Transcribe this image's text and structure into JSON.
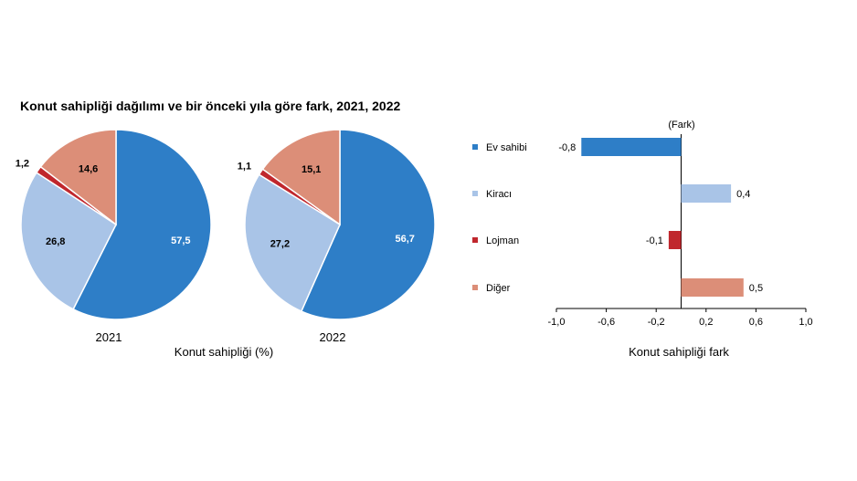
{
  "title": "Konut sahipliği dağılımı ve bir önceki yıla göre fark, 2021, 2022",
  "pie_axis_label": "Konut sahipliği (%)",
  "bar_axis_label": "Konut sahipliği fark",
  "bar_unit_label": "(Fark)",
  "colors": {
    "ev_sahibi": "#2E7EC7",
    "kiraci": "#A9C4E7",
    "lojman": "#C0272D",
    "diger": "#DC8E78"
  },
  "chart_data": [
    {
      "type": "pie",
      "title": "2021",
      "categories": [
        "Ev sahibi",
        "Kiracı",
        "Lojman",
        "Diğer"
      ],
      "values": [
        57.5,
        26.8,
        1.2,
        14.6
      ],
      "labels": [
        "57,5",
        "26,8",
        "1,2",
        "14,6"
      ]
    },
    {
      "type": "pie",
      "title": "2022",
      "categories": [
        "Ev sahibi",
        "Kiracı",
        "Lojman",
        "Diğer"
      ],
      "values": [
        56.7,
        27.2,
        1.1,
        15.1
      ],
      "labels": [
        "56,7",
        "27,2",
        "1,1",
        "15,1"
      ]
    },
    {
      "type": "bar",
      "orientation": "horizontal",
      "categories": [
        "Ev sahibi",
        "Kiracı",
        "Lojman",
        "Diğer"
      ],
      "values": [
        -0.8,
        0.4,
        -0.1,
        0.5
      ],
      "labels": [
        "-0,8",
        "0,4",
        "-0,1",
        "0,5"
      ],
      "xlim": [
        -1.0,
        1.0
      ],
      "xticks": [
        -1.0,
        -0.6,
        -0.2,
        0.2,
        0.6,
        1.0
      ],
      "xtick_labels": [
        "-1,0",
        "-0,6",
        "-0,2",
        "0,2",
        "0,6",
        "1,0"
      ],
      "xlabel": "Konut sahipliği fark",
      "legend": "left"
    }
  ]
}
